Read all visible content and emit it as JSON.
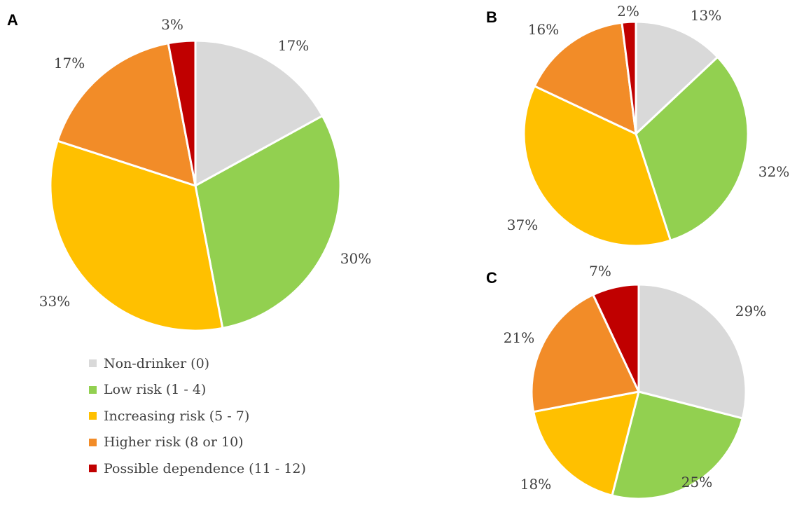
{
  "legend": {
    "items": [
      {
        "label": "Non-drinker (0)",
        "color": "#D9D9D9"
      },
      {
        "label": "Low risk (1 - 4)",
        "color": "#92D050"
      },
      {
        "label": "Increasing risk (5 - 7)",
        "color": "#FFC000"
      },
      {
        "label": "Higher risk (8 or 10)",
        "color": "#F28C28"
      },
      {
        "label": "Possible dependence (11 - 12)",
        "color": "#C00000"
      }
    ]
  },
  "chart_data": [
    {
      "type": "pie",
      "panel": "A",
      "categories": [
        "Non-drinker (0)",
        "Low risk (1 - 4)",
        "Increasing risk (5 - 7)",
        "Higher risk (8 or 10)",
        "Possible dependence (11 - 12)"
      ],
      "values": [
        17,
        30,
        33,
        17,
        3
      ],
      "labels": [
        "17%",
        "30%",
        "33%",
        "17%",
        "3%"
      ],
      "colors": [
        "#D9D9D9",
        "#92D050",
        "#FFC000",
        "#F28C28",
        "#C00000"
      ],
      "legend": "bottom"
    },
    {
      "type": "pie",
      "panel": "B",
      "categories": [
        "Non-drinker (0)",
        "Low risk (1 - 4)",
        "Increasing risk (5 - 7)",
        "Higher risk (8 or 10)",
        "Possible dependence (11 - 12)"
      ],
      "values": [
        13,
        32,
        37,
        16,
        2
      ],
      "labels": [
        "13%",
        "32%",
        "37%",
        "16%",
        "2%"
      ],
      "colors": [
        "#D9D9D9",
        "#92D050",
        "#FFC000",
        "#F28C28",
        "#C00000"
      ]
    },
    {
      "type": "pie",
      "panel": "C",
      "categories": [
        "Non-drinker (0)",
        "Low risk (1 - 4)",
        "Increasing risk (5 - 7)",
        "Higher risk (8 or 10)",
        "Possible dependence (11 - 12)"
      ],
      "values": [
        29,
        25,
        18,
        21,
        7
      ],
      "labels": [
        "29%",
        "25%",
        "18%",
        "21%",
        "7%"
      ],
      "colors": [
        "#D9D9D9",
        "#92D050",
        "#FFC000",
        "#F28C28",
        "#C00000"
      ]
    }
  ]
}
